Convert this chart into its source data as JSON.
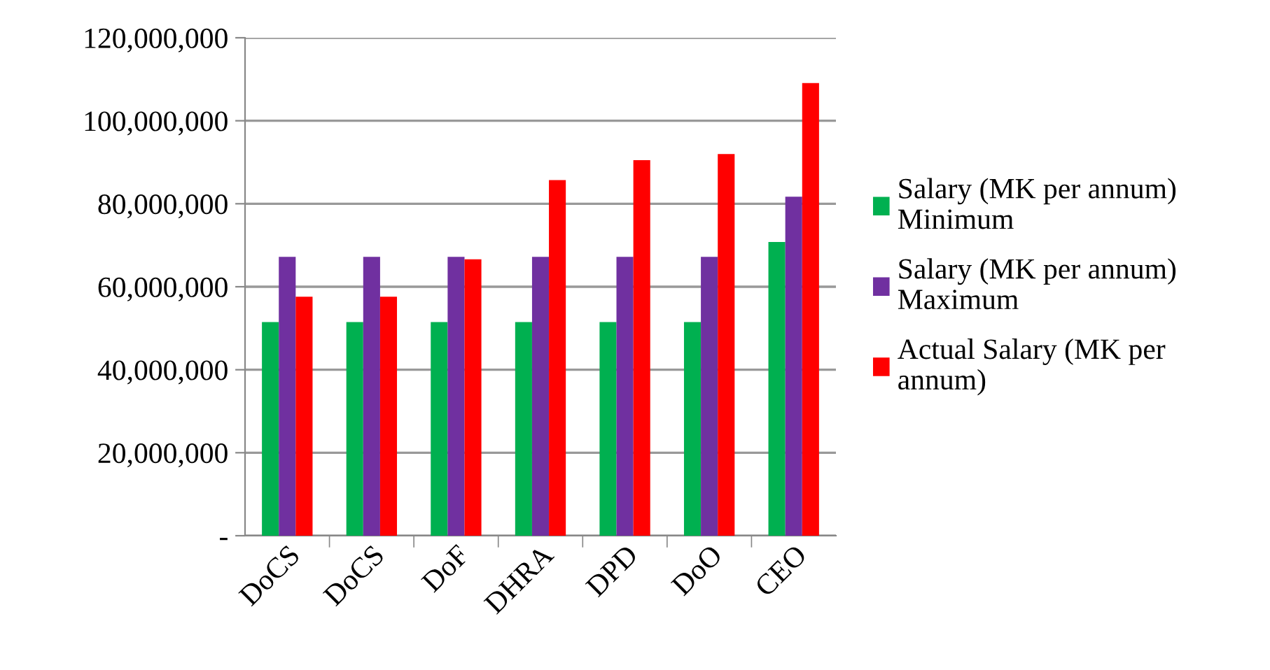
{
  "chart_data": {
    "type": "bar",
    "categories": [
      "DoCS",
      "DoCS",
      "DoF",
      "DHRA",
      "DPD",
      "DoO",
      "CEO"
    ],
    "series": [
      {
        "name": "Salary (MK per annum)\nMinimum",
        "color": "#00b050",
        "values": [
          51500000,
          51500000,
          51500000,
          51500000,
          51500000,
          51500000,
          70800000
        ]
      },
      {
        "name": "Salary (MK per annum)\nMaximum",
        "color": "#7030a0",
        "values": [
          67200000,
          67200000,
          67200000,
          67200000,
          67200000,
          67200000,
          81700000
        ]
      },
      {
        "name": "Actual Salary (MK per\nannum)",
        "color": "#ff0000",
        "values": [
          57600000,
          57600000,
          66600000,
          85700000,
          90500000,
          92000000,
          109100000
        ]
      }
    ],
    "ylim": [
      0,
      120000000
    ],
    "yticks": [
      {
        "value": 0,
        "label": "-"
      },
      {
        "value": 20000000,
        "label": "20,000,000"
      },
      {
        "value": 40000000,
        "label": "40,000,000"
      },
      {
        "value": 60000000,
        "label": "60,000,000"
      },
      {
        "value": 80000000,
        "label": "80,000,000"
      },
      {
        "value": 100000000,
        "label": "100,000,000"
      },
      {
        "value": 120000000,
        "label": "120,000,000"
      }
    ],
    "grid": "y",
    "legend": "right"
  }
}
